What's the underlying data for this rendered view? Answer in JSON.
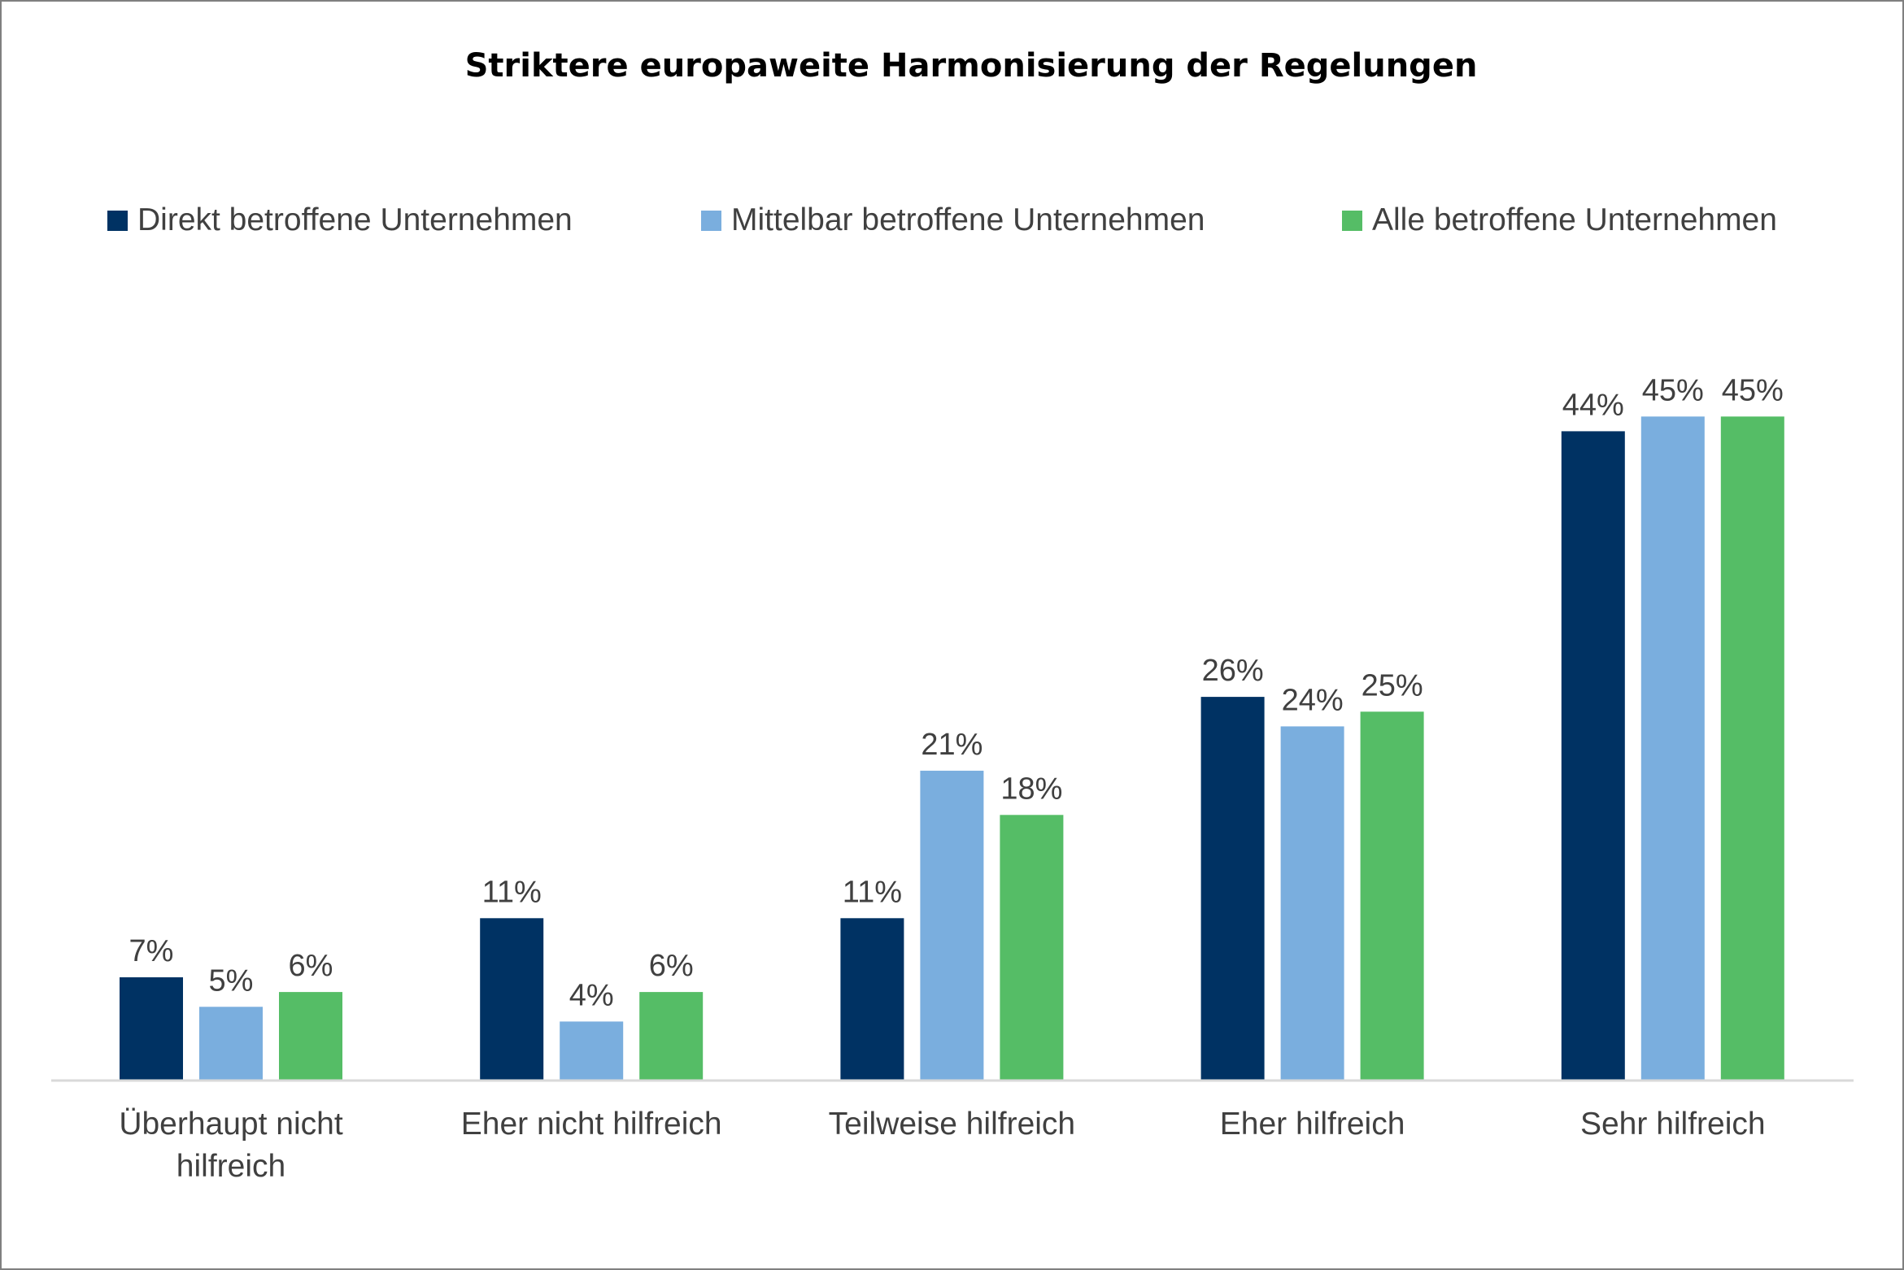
{
  "chart_data": {
    "type": "bar",
    "title": "Striktere europaweite Harmonisierung der Regelungen",
    "xlabel": "",
    "ylabel": "",
    "ylim": [
      0,
      50
    ],
    "grid": false,
    "legend_position": "top",
    "categories": [
      [
        "Überhaupt nicht",
        "hilfreich"
      ],
      [
        "Eher nicht hilfreich"
      ],
      [
        "Teilweise hilfreich"
      ],
      [
        "Eher hilfreich"
      ],
      [
        "Sehr hilfreich"
      ]
    ],
    "series": [
      {
        "name": "Direkt betroffene Unternehmen",
        "color": "#003263",
        "values": [
          7,
          11,
          11,
          26,
          44
        ],
        "labels": [
          "7%",
          "11%",
          "11%",
          "26%",
          "44%"
        ]
      },
      {
        "name": "Mittelbar betroffene Unternehmen",
        "color": "#7aaede",
        "values": [
          5,
          4,
          21,
          24,
          45
        ],
        "labels": [
          "5%",
          "4%",
          "21%",
          "24%",
          "45%"
        ]
      },
      {
        "name": "Alle betroffene Unternehmen",
        "color": "#55bd66",
        "values": [
          6,
          6,
          18,
          25,
          45
        ],
        "labels": [
          "6%",
          "6%",
          "18%",
          "25%",
          "45%"
        ]
      }
    ],
    "axis_color": "#d9d9d9"
  }
}
